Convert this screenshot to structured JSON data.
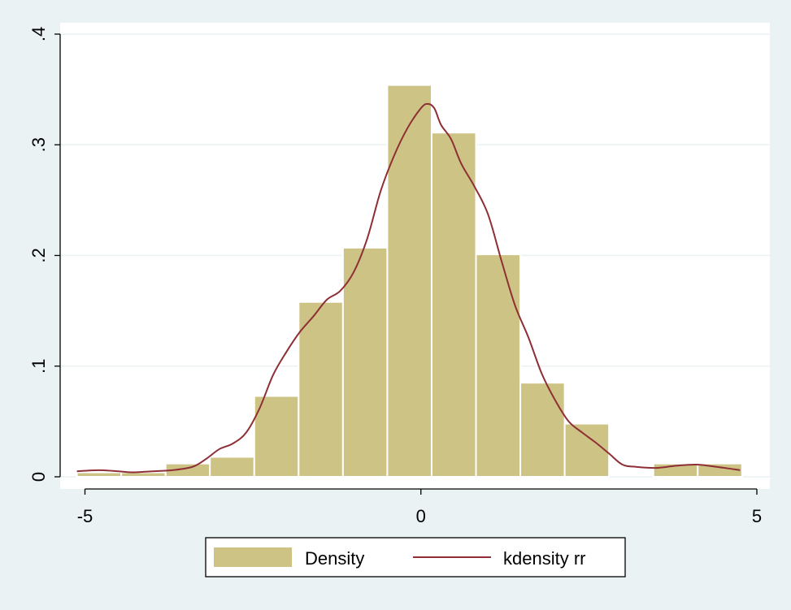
{
  "colors": {
    "outer_background": "#eaf2f3",
    "plot_background": "#ffffff",
    "gridline": "#eaf2f3",
    "bar_fill": "#cdc384",
    "bar_stroke": "#ffffff",
    "kde_line": "#8e2f36",
    "axis": "#000000"
  },
  "chart_data": {
    "type": "bar",
    "title": "",
    "xlabel": "",
    "ylabel": "",
    "xlim": [
      -5.3,
      5.1
    ],
    "ylim": [
      0,
      0.4
    ],
    "grid": true,
    "legend_position": "bottom",
    "xticks": [
      {
        "value": -5,
        "label": "-5"
      },
      {
        "value": 0,
        "label": "0"
      },
      {
        "value": 5,
        "label": "5"
      }
    ],
    "yticks": [
      {
        "value": 0,
        "label": "0"
      },
      {
        "value": 0.1,
        "label": ".1"
      },
      {
        "value": 0.2,
        "label": ".2"
      },
      {
        "value": 0.3,
        "label": ".3"
      },
      {
        "value": 0.4,
        "label": ".4"
      }
    ],
    "histogram": {
      "name": "Density",
      "bins": [
        {
          "x0": -5.12,
          "x1": -4.46,
          "density": 0.004
        },
        {
          "x0": -4.46,
          "x1": -3.8,
          "density": 0.004
        },
        {
          "x0": -3.8,
          "x1": -3.14,
          "density": 0.012
        },
        {
          "x0": -3.14,
          "x1": -2.48,
          "density": 0.018
        },
        {
          "x0": -2.48,
          "x1": -1.82,
          "density": 0.073
        },
        {
          "x0": -1.82,
          "x1": -1.16,
          "density": 0.158
        },
        {
          "x0": -1.16,
          "x1": -0.5,
          "density": 0.207
        },
        {
          "x0": -0.5,
          "x1": 0.16,
          "density": 0.354
        },
        {
          "x0": 0.16,
          "x1": 0.82,
          "density": 0.311
        },
        {
          "x0": 0.82,
          "x1": 1.48,
          "density": 0.201
        },
        {
          "x0": 1.48,
          "x1": 2.14,
          "density": 0.085
        },
        {
          "x0": 2.14,
          "x1": 2.8,
          "density": 0.048
        },
        {
          "x0": 2.8,
          "x1": 3.46,
          "density": 0
        },
        {
          "x0": 3.46,
          "x1": 4.12,
          "density": 0.012
        },
        {
          "x0": 4.12,
          "x1": 4.78,
          "density": 0.012
        }
      ]
    },
    "kde": {
      "name": "kdensity rr",
      "points": [
        [
          -5.12,
          0.005
        ],
        [
          -4.8,
          0.006
        ],
        [
          -4.5,
          0.005
        ],
        [
          -4.3,
          0.004
        ],
        [
          -4.0,
          0.005
        ],
        [
          -3.7,
          0.006
        ],
        [
          -3.4,
          0.009
        ],
        [
          -3.2,
          0.016
        ],
        [
          -3.0,
          0.025
        ],
        [
          -2.8,
          0.03
        ],
        [
          -2.6,
          0.04
        ],
        [
          -2.4,
          0.062
        ],
        [
          -2.2,
          0.092
        ],
        [
          -2.0,
          0.113
        ],
        [
          -1.8,
          0.131
        ],
        [
          -1.6,
          0.145
        ],
        [
          -1.4,
          0.16
        ],
        [
          -1.2,
          0.168
        ],
        [
          -1.0,
          0.185
        ],
        [
          -0.8,
          0.215
        ],
        [
          -0.6,
          0.258
        ],
        [
          -0.4,
          0.29
        ],
        [
          -0.2,
          0.315
        ],
        [
          0.0,
          0.333
        ],
        [
          0.1,
          0.337
        ],
        [
          0.2,
          0.333
        ],
        [
          0.3,
          0.318
        ],
        [
          0.45,
          0.305
        ],
        [
          0.6,
          0.283
        ],
        [
          0.8,
          0.262
        ],
        [
          1.0,
          0.237
        ],
        [
          1.2,
          0.195
        ],
        [
          1.4,
          0.155
        ],
        [
          1.6,
          0.126
        ],
        [
          1.8,
          0.093
        ],
        [
          2.0,
          0.069
        ],
        [
          2.2,
          0.05
        ],
        [
          2.4,
          0.04
        ],
        [
          2.6,
          0.031
        ],
        [
          2.8,
          0.021
        ],
        [
          3.0,
          0.011
        ],
        [
          3.2,
          0.009
        ],
        [
          3.5,
          0.008
        ],
        [
          3.8,
          0.01
        ],
        [
          4.1,
          0.011
        ],
        [
          4.4,
          0.009
        ],
        [
          4.75,
          0.006
        ]
      ]
    },
    "legend": [
      {
        "label": "Density",
        "kind": "box"
      },
      {
        "label": "kdensity rr",
        "kind": "line"
      }
    ]
  }
}
